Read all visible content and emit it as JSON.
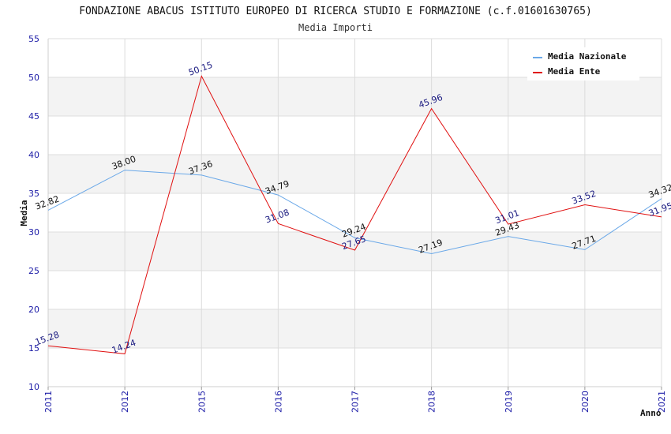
{
  "chart_data": {
    "type": "line",
    "title": "FONDAZIONE ABACUS ISTITUTO EUROPEO DI RICERCA STUDIO E FORMAZIONE (c.f.01601630765)",
    "subtitle": "Media Importi",
    "xlabel": "Anno",
    "ylabel": "Media",
    "ylim": [
      10,
      55
    ],
    "yticks": [
      "10",
      "15",
      "20",
      "25",
      "30",
      "35",
      "40",
      "45",
      "50",
      "55"
    ],
    "categories": [
      "2011",
      "2012",
      "2015",
      "2016",
      "2017",
      "2018",
      "2019",
      "2020",
      "2021"
    ],
    "grid": true,
    "legend_position": "top-right",
    "series": [
      {
        "name": "Media Nazionale",
        "color": "#6aa8e8",
        "values": [
          32.82,
          38.0,
          37.36,
          34.79,
          29.24,
          27.19,
          29.43,
          27.71,
          34.32
        ],
        "labels": [
          "32.82",
          "38.00",
          "37.36",
          "34.79",
          "29.24",
          "27.19",
          "29.43",
          "27.71",
          "34.32"
        ]
      },
      {
        "name": "Media Ente",
        "color": "#e01010",
        "values": [
          15.28,
          14.24,
          50.15,
          31.08,
          27.65,
          45.96,
          31.01,
          33.52,
          31.95
        ],
        "labels": [
          "15.28",
          "14.24",
          "50.15",
          "31.08",
          "27.65",
          "45.96",
          "31.01",
          "33.52",
          "31.95"
        ]
      }
    ]
  }
}
